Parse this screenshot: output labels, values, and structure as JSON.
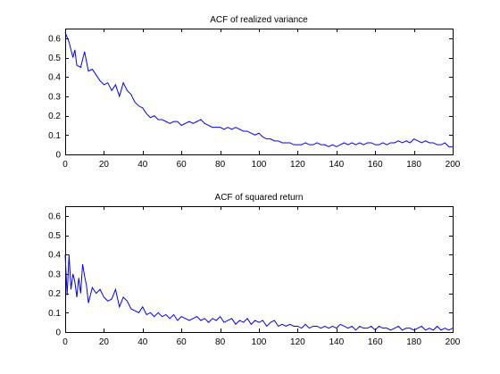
{
  "chart_data": [
    {
      "type": "line",
      "title": "ACF of realized variance",
      "xlabel": "",
      "ylabel": "",
      "xlim": [
        0,
        200
      ],
      "ylim": [
        0,
        0.65
      ],
      "xticks": [
        0,
        20,
        40,
        60,
        80,
        100,
        120,
        140,
        160,
        180,
        200
      ],
      "yticks": [
        0,
        0.1,
        0.2,
        0.3,
        0.4,
        0.5,
        0.6
      ],
      "ytick_labels": [
        "0",
        "0.1",
        "0.2",
        "0.3",
        "0.4",
        "0.5",
        "0.6"
      ],
      "grid": false,
      "color": "#0000ff",
      "x": [
        0,
        2,
        4,
        5,
        6,
        8,
        10,
        12,
        14,
        16,
        18,
        20,
        22,
        24,
        26,
        28,
        30,
        32,
        34,
        36,
        38,
        40,
        42,
        44,
        46,
        48,
        50,
        52,
        54,
        56,
        58,
        60,
        62,
        64,
        66,
        68,
        70,
        72,
        74,
        76,
        78,
        80,
        82,
        84,
        86,
        88,
        90,
        92,
        94,
        96,
        98,
        100,
        102,
        104,
        106,
        108,
        110,
        112,
        114,
        116,
        118,
        120,
        122,
        124,
        126,
        128,
        130,
        132,
        134,
        136,
        138,
        140,
        142,
        144,
        146,
        148,
        150,
        152,
        154,
        156,
        158,
        160,
        162,
        164,
        166,
        168,
        170,
        172,
        174,
        176,
        178,
        180,
        182,
        184,
        186,
        188,
        190,
        192,
        194,
        196,
        198,
        200
      ],
      "values": [
        0.63,
        0.58,
        0.5,
        0.54,
        0.46,
        0.45,
        0.53,
        0.43,
        0.44,
        0.41,
        0.38,
        0.36,
        0.37,
        0.33,
        0.36,
        0.3,
        0.37,
        0.33,
        0.31,
        0.27,
        0.25,
        0.24,
        0.21,
        0.19,
        0.2,
        0.18,
        0.18,
        0.17,
        0.16,
        0.17,
        0.17,
        0.15,
        0.16,
        0.17,
        0.16,
        0.17,
        0.18,
        0.16,
        0.15,
        0.14,
        0.14,
        0.14,
        0.13,
        0.14,
        0.13,
        0.14,
        0.13,
        0.12,
        0.12,
        0.11,
        0.1,
        0.11,
        0.09,
        0.08,
        0.08,
        0.07,
        0.07,
        0.06,
        0.06,
        0.06,
        0.05,
        0.05,
        0.05,
        0.06,
        0.05,
        0.05,
        0.06,
        0.05,
        0.05,
        0.04,
        0.05,
        0.04,
        0.05,
        0.06,
        0.05,
        0.06,
        0.05,
        0.06,
        0.05,
        0.06,
        0.06,
        0.05,
        0.05,
        0.06,
        0.05,
        0.06,
        0.06,
        0.07,
        0.06,
        0.07,
        0.06,
        0.08,
        0.07,
        0.06,
        0.07,
        0.06,
        0.06,
        0.05,
        0.05,
        0.06,
        0.04,
        0.04
      ]
    },
    {
      "type": "line",
      "title": "ACF of squared return",
      "xlabel": "",
      "ylabel": "",
      "xlim": [
        0,
        200
      ],
      "ylim": [
        0,
        0.65
      ],
      "xticks": [
        0,
        20,
        40,
        60,
        80,
        100,
        120,
        140,
        160,
        180,
        200
      ],
      "yticks": [
        0,
        0.1,
        0.2,
        0.3,
        0.4,
        0.5,
        0.6
      ],
      "ytick_labels": [
        "0",
        "0.1",
        "0.2",
        "0.3",
        "0.4",
        "0.5",
        "0.6"
      ],
      "grid": false,
      "color": "#0000ff",
      "x": [
        0,
        1,
        2,
        3,
        4,
        5,
        6,
        7,
        8,
        9,
        10,
        11,
        12,
        13,
        14,
        16,
        18,
        20,
        22,
        24,
        26,
        28,
        30,
        32,
        34,
        36,
        38,
        40,
        42,
        44,
        46,
        48,
        50,
        52,
        54,
        56,
        58,
        60,
        62,
        64,
        66,
        68,
        70,
        72,
        74,
        76,
        78,
        80,
        82,
        84,
        86,
        88,
        90,
        92,
        94,
        96,
        98,
        100,
        102,
        104,
        106,
        108,
        110,
        112,
        114,
        116,
        118,
        120,
        122,
        124,
        126,
        128,
        130,
        132,
        134,
        136,
        138,
        140,
        142,
        144,
        146,
        148,
        150,
        152,
        154,
        156,
        158,
        160,
        162,
        164,
        166,
        168,
        170,
        172,
        174,
        176,
        178,
        180,
        182,
        184,
        186,
        188,
        190,
        192,
        194,
        196,
        198,
        200
      ],
      "values": [
        0.4,
        0.19,
        0.4,
        0.22,
        0.3,
        0.26,
        0.18,
        0.28,
        0.2,
        0.35,
        0.29,
        0.24,
        0.15,
        0.19,
        0.23,
        0.2,
        0.22,
        0.18,
        0.16,
        0.17,
        0.22,
        0.13,
        0.18,
        0.16,
        0.12,
        0.11,
        0.1,
        0.13,
        0.09,
        0.1,
        0.08,
        0.1,
        0.08,
        0.09,
        0.07,
        0.09,
        0.06,
        0.08,
        0.07,
        0.06,
        0.07,
        0.08,
        0.06,
        0.07,
        0.05,
        0.07,
        0.06,
        0.08,
        0.05,
        0.06,
        0.07,
        0.04,
        0.06,
        0.05,
        0.07,
        0.04,
        0.06,
        0.05,
        0.06,
        0.03,
        0.05,
        0.06,
        0.03,
        0.04,
        0.03,
        0.04,
        0.03,
        0.03,
        0.02,
        0.04,
        0.02,
        0.03,
        0.03,
        0.02,
        0.03,
        0.02,
        0.03,
        0.02,
        0.04,
        0.03,
        0.02,
        0.03,
        0.01,
        0.03,
        0.02,
        0.02,
        0.03,
        0.01,
        0.03,
        0.02,
        0.02,
        0.01,
        0.02,
        0.03,
        0.01,
        0.02,
        0.02,
        0.01,
        0.02,
        0.03,
        0.01,
        0.02,
        0.01,
        0.03,
        0.01,
        0.02,
        0.01,
        0.02
      ]
    }
  ]
}
